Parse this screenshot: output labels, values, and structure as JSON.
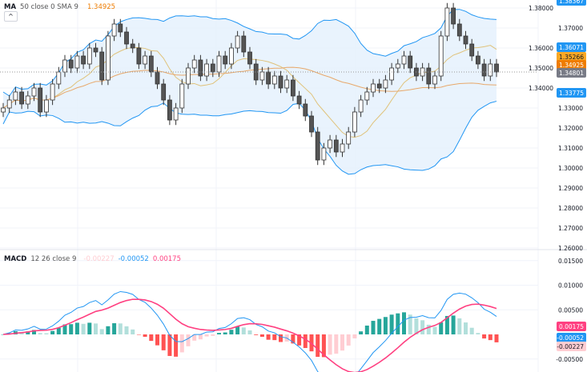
{
  "chart_data": [
    {
      "type": "candlestick",
      "legend": {
        "name": "MA",
        "params": "50 close 0 SMA 9",
        "value": "1.34925"
      },
      "ylim": [
        1.255,
        1.385
      ],
      "y_ticks": [
        "1.38000",
        "1.37000",
        "1.36000",
        "1.35000",
        "1.34000",
        "1.33000",
        "1.32000",
        "1.31000",
        "1.30000",
        "1.29000",
        "1.28000",
        "1.27000",
        "1.26000"
      ],
      "closes": [
        1.33,
        1.334,
        1.338,
        1.332,
        1.336,
        1.34,
        1.328,
        1.334,
        1.342,
        1.348,
        1.354,
        1.35,
        1.356,
        1.352,
        1.36,
        1.358,
        1.344,
        1.366,
        1.372,
        1.368,
        1.362,
        1.36,
        1.352,
        1.356,
        1.348,
        1.342,
        1.334,
        1.324,
        1.33,
        1.342,
        1.35,
        1.354,
        1.346,
        1.352,
        1.348,
        1.356,
        1.352,
        1.36,
        1.366,
        1.358,
        1.352,
        1.344,
        1.348,
        1.342,
        1.346,
        1.34,
        1.344,
        1.336,
        1.332,
        1.326,
        1.318,
        1.304,
        1.31,
        1.314,
        1.308,
        1.312,
        1.318,
        1.328,
        1.334,
        1.338,
        1.342,
        1.34,
        1.344,
        1.35,
        1.352,
        1.356,
        1.35,
        1.346,
        1.35,
        1.342,
        1.346,
        1.366,
        1.38,
        1.372,
        1.366,
        1.362,
        1.356,
        1.352,
        1.346,
        1.352,
        1.348
      ],
      "price_badges": [
        {
          "label": "1.38367",
          "color": "#2196f3"
        },
        {
          "label": "1.36071",
          "color": "#2196f3"
        },
        {
          "label": "1.35266",
          "color": "#f9a825"
        },
        {
          "label": "1.34925",
          "color": "#ef7c00"
        },
        {
          "label": "1.34801",
          "color": "#787b86"
        },
        {
          "label": "1.33775",
          "color": "#2196f3"
        }
      ],
      "colors": {
        "up": "#ffffff",
        "down": "#555555",
        "bands": "#2196f3",
        "band_fill": "#e3f0fc",
        "sma": "#e0c27a",
        "ma50": "#e8a86a"
      }
    },
    {
      "type": "macd",
      "legend": {
        "name": "MACD",
        "params": "12 26 close 9",
        "hist": "-0.00227",
        "macd": "-0.00052",
        "signal": "0.00175"
      },
      "ylim": [
        -0.0075,
        0.0175
      ],
      "y_ticks": [
        "0.01500",
        "0.01000",
        "0.00500",
        "-0.00500"
      ],
      "badges": [
        {
          "label": "0.00175",
          "color": "#ff4081",
          "text": "#ffffff"
        },
        {
          "label": "-0.00052",
          "color": "#2196f3",
          "text": "#ffffff"
        },
        {
          "label": "-0.00227",
          "color": "#ffcdd2",
          "text": "#131722"
        }
      ],
      "colors": {
        "macd": "#2196f3",
        "signal": "#ff4081",
        "hist_up_strong": "#26a69a",
        "hist_up_weak": "#b2dfdb",
        "hist_down_strong": "#ff5252",
        "hist_down_weak": "#ffcdd2"
      }
    }
  ],
  "ui": {
    "collapse_icon": "chevron-up-icon",
    "collapse_glyph": "^"
  }
}
